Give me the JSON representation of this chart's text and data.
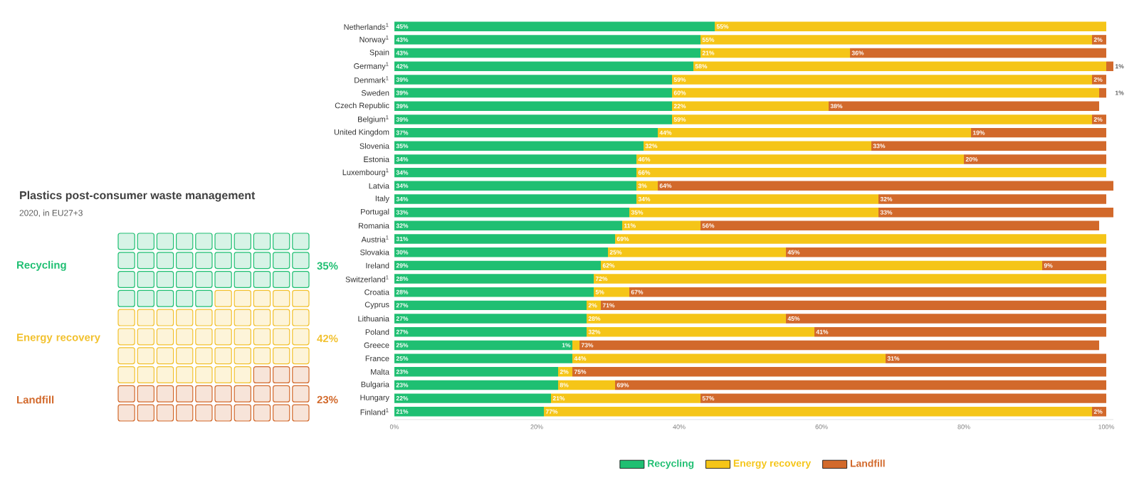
{
  "chart_data": [
    {
      "type": "other",
      "title": "Plastics post-consumer waste management",
      "subtitle": "2020, in EU27+3",
      "categories": [
        "Recycling",
        "Energy recovery",
        "Landfill"
      ],
      "values": [
        35,
        42,
        23
      ],
      "value_labels": [
        "35%",
        "42%",
        "23%"
      ],
      "colors": [
        "#1fbf72",
        "#f2c12e",
        "#d2692b"
      ]
    },
    {
      "type": "bar",
      "orientation": "horizontal",
      "stacked": true,
      "legend": "bottom",
      "categories": [
        "Netherlands$^{1}$",
        "Norway$^{1}$",
        "Spain",
        "Germany$^{1}$",
        "Denmark$^{1}$",
        "Sweden",
        "Czech Republic",
        "Belgium$^{1}$",
        "United Kingdom",
        "Slovenia",
        "Estonia",
        "Luxembourg$^{1}$",
        "Latvia",
        "Italy",
        "Portugal",
        "Romania",
        "Austria$^{1}$",
        "Slovakia",
        "Ireland",
        "Switzerland$^{1}$",
        "Croatia",
        "Cyprus",
        "Lithuania",
        "Poland",
        "Greece",
        "France",
        "Malta",
        "Bulgaria",
        "Hungary",
        "Finland$^{1}$"
      ],
      "xlim": [
        0,
        101
      ],
      "xticks": [
        {
          "value": 0,
          "label": "0%"
        },
        {
          "value": 20,
          "label": "20%"
        },
        {
          "value": 40,
          "label": "40%"
        },
        {
          "value": 60,
          "label": "60%"
        },
        {
          "value": 80,
          "label": "80%"
        },
        {
          "value": 100,
          "label": "100%"
        }
      ],
      "series": [
        {
          "name": "Recycling",
          "color": "#1fbf72",
          "values": [
            45,
            43,
            43,
            42,
            39,
            39,
            39,
            39,
            37,
            35,
            34,
            34,
            34,
            34,
            33,
            32,
            31,
            30,
            29,
            28,
            28,
            27,
            27,
            27,
            25,
            25,
            23,
            23,
            22,
            21
          ],
          "value_labels": [
            "45%",
            "43%",
            "43%",
            "42%",
            "39%",
            "39%",
            "39%",
            "39%",
            "37%",
            "35%",
            "34%",
            "34%",
            "34%",
            "34%",
            "33%",
            "32%",
            "31%",
            "30%",
            "29%",
            "28%",
            "28%",
            "27%",
            "27%",
            "27%",
            "25%",
            "25%",
            "23%",
            "23%",
            "22%",
            "21%"
          ]
        },
        {
          "name": "Energy recovery",
          "color": "#f5c518",
          "values": [
            55,
            55,
            21,
            58,
            59,
            60,
            22,
            59,
            44,
            32,
            46,
            66,
            3,
            34,
            35,
            11,
            69,
            25,
            62,
            72,
            5,
            2,
            28,
            32,
            1,
            44,
            2,
            8,
            21,
            77
          ],
          "value_labels": [
            "55%",
            "55%",
            "21%",
            "58%",
            "59%",
            "60%",
            "22%",
            "59%",
            "44%",
            "32%",
            "46%",
            "66%",
            "3%",
            "34%",
            "35%",
            "11%",
            "69%",
            "25%",
            "62%",
            "72%",
            "5%",
            "2%",
            "28%",
            "32%",
            "1%",
            "44%",
            "2%",
            "8%",
            "21%",
            "77%"
          ]
        },
        {
          "name": "Landfill",
          "color": "#d2692b",
          "values": [
            null,
            2,
            36,
            1,
            2,
            1,
            38,
            2,
            19,
            33,
            20,
            null,
            64,
            32,
            33,
            56,
            null,
            45,
            9,
            null,
            67,
            71,
            45,
            41,
            73,
            31,
            75,
            69,
            57,
            2
          ],
          "value_labels": [
            null,
            "2%",
            "36%",
            "1%",
            "2%",
            "1%",
            "38%",
            "2%",
            "19%",
            "33%",
            "20%",
            null,
            "64%",
            "32%",
            "33%",
            "56%",
            null,
            "45%",
            "9%",
            null,
            "67%",
            "71%",
            "45%",
            "41%",
            "73%",
            "31%",
            "75%",
            "69%",
            "57%",
            "2%"
          ]
        }
      ]
    }
  ]
}
